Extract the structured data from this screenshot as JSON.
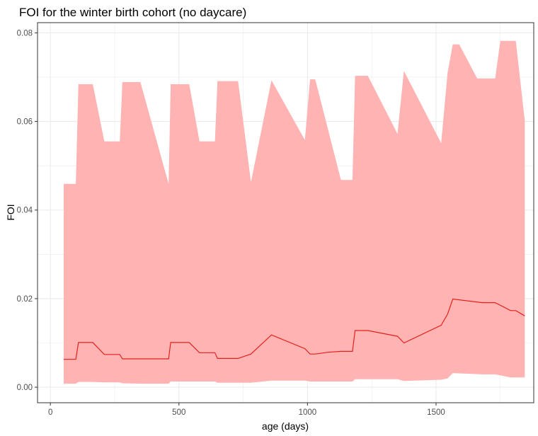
{
  "chart_data": {
    "type": "area",
    "title": "FOI for the winter birth cohort (no daycare)",
    "xlabel": "age (days)",
    "ylabel": "FOI",
    "xlim": [
      -50,
      1880
    ],
    "ylim": [
      -0.0035,
      0.0823
    ],
    "x_ticks": [
      0,
      500,
      1000,
      1500
    ],
    "y_ticks": [
      0.0,
      0.02,
      0.04,
      0.06,
      0.08
    ],
    "x_tick_labels": [
      "0",
      "500",
      "1000",
      "1500"
    ],
    "y_tick_labels": [
      "0.00",
      "0.02",
      "0.04",
      "0.06",
      "0.08"
    ],
    "grid": true,
    "legend": "none",
    "colors": {
      "ribbon": "#ffb3b3",
      "line": "#e3211c",
      "grid": "#ebebeb",
      "panel_border": "#333333"
    },
    "series": [
      {
        "type": "line",
        "x": [
          52,
          99,
          109,
          165,
          210,
          270,
          280,
          360,
          460,
          468,
          540,
          580,
          640,
          650,
          730,
          780,
          860,
          990,
          1010,
          1030,
          1080,
          1130,
          1175,
          1185,
          1235,
          1350,
          1375,
          1520,
          1545,
          1565,
          1680,
          1730,
          1790,
          1810,
          1845
        ],
        "y": [
          0.0063,
          0.0063,
          0.0101,
          0.0101,
          0.0074,
          0.0074,
          0.0064,
          0.0064,
          0.0064,
          0.0101,
          0.0101,
          0.0078,
          0.0078,
          0.0065,
          0.0065,
          0.0075,
          0.0118,
          0.0087,
          0.0075,
          0.0075,
          0.0079,
          0.0081,
          0.0081,
          0.0128,
          0.0128,
          0.0115,
          0.01,
          0.014,
          0.0165,
          0.0199,
          0.0191,
          0.0191,
          0.0173,
          0.0173,
          0.0161
        ]
      },
      {
        "type": "ribbon_upper",
        "x": [
          52,
          99,
          109,
          165,
          210,
          270,
          280,
          350,
          460,
          468,
          540,
          580,
          640,
          650,
          730,
          780,
          860,
          990,
          1010,
          1030,
          1130,
          1175,
          1185,
          1235,
          1350,
          1375,
          1520,
          1545,
          1565,
          1590,
          1660,
          1730,
          1750,
          1790,
          1810,
          1845
        ],
        "y": [
          0.0459,
          0.0459,
          0.0684,
          0.0684,
          0.0555,
          0.0555,
          0.0689,
          0.0689,
          0.0459,
          0.0684,
          0.0684,
          0.0555,
          0.0555,
          0.0691,
          0.0691,
          0.0463,
          0.0693,
          0.0558,
          0.0695,
          0.0695,
          0.0468,
          0.0468,
          0.0703,
          0.0703,
          0.0572,
          0.0714,
          0.0551,
          0.071,
          0.0774,
          0.0774,
          0.0697,
          0.0697,
          0.0782,
          0.0782,
          0.0782,
          0.0602
        ]
      },
      {
        "type": "ribbon_lower",
        "x": [
          52,
          99,
          109,
          165,
          210,
          270,
          280,
          360,
          460,
          468,
          540,
          580,
          640,
          650,
          730,
          780,
          860,
          990,
          1010,
          1030,
          1130,
          1175,
          1185,
          1235,
          1350,
          1375,
          1520,
          1545,
          1565,
          1680,
          1730,
          1790,
          1810,
          1845
        ],
        "y": [
          0.0008,
          0.0008,
          0.0012,
          0.0012,
          0.0011,
          0.0011,
          0.0009,
          0.0008,
          0.0008,
          0.0013,
          0.0013,
          0.0013,
          0.0013,
          0.001,
          0.001,
          0.001,
          0.0015,
          0.0015,
          0.0013,
          0.0013,
          0.0013,
          0.0013,
          0.0018,
          0.0018,
          0.0018,
          0.0014,
          0.0017,
          0.002,
          0.0032,
          0.0029,
          0.0029,
          0.0022,
          0.0022,
          0.0022
        ]
      }
    ]
  }
}
